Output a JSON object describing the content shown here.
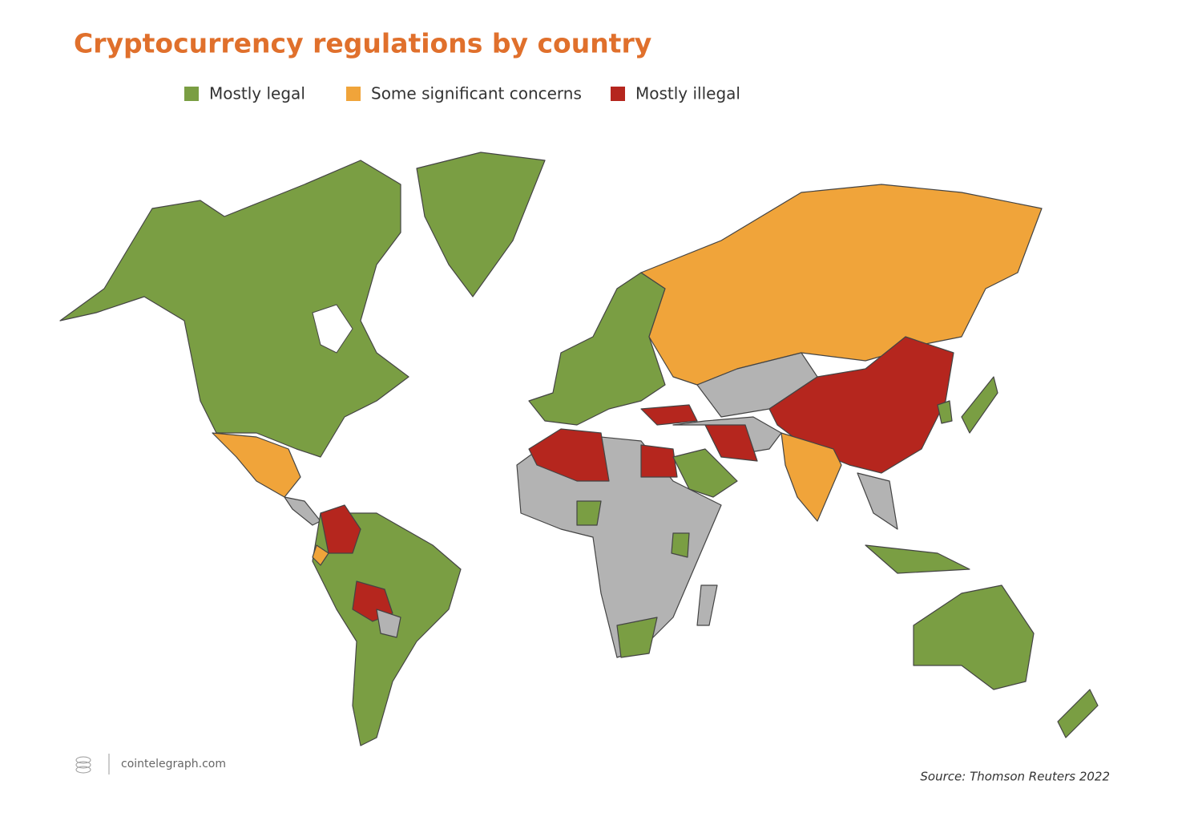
{
  "header": {
    "title": "Cryptocurrency regulations by country"
  },
  "legend": [
    {
      "label": "Mostly legal",
      "color": "#7a9e43"
    },
    {
      "label": "Some significant concerns",
      "color": "#f0a43a"
    },
    {
      "label": "Mostly illegal",
      "color": "#b5261e"
    }
  ],
  "no_data_color": "#b3b3b3",
  "footer": {
    "brand": "cointelegraph.com",
    "source": "Source: Thomson Reuters 2022"
  }
}
